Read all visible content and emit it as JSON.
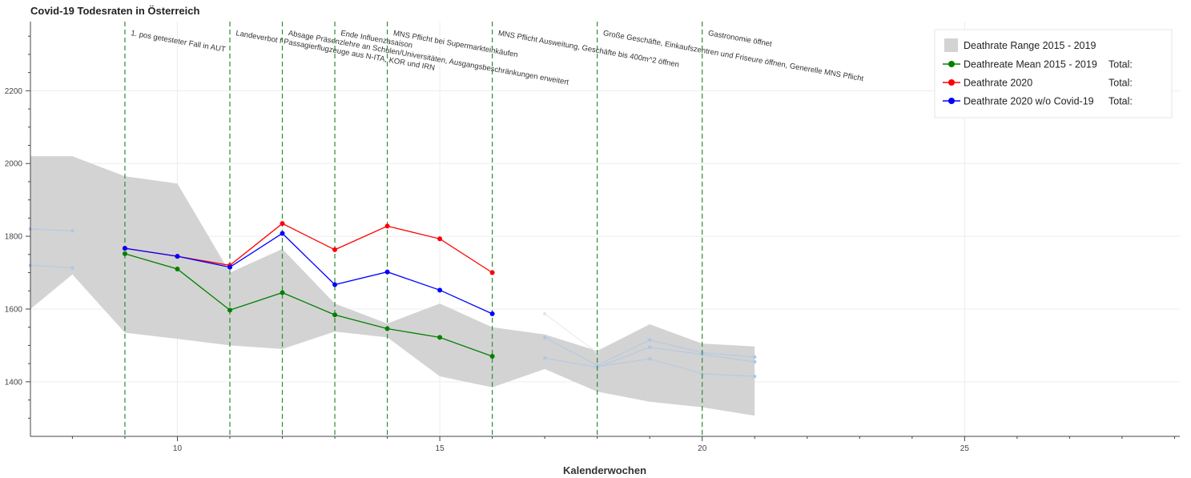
{
  "chart_data": {
    "type": "line",
    "title": "Covid-19 Todesraten in Österreich",
    "xlabel": "Kalenderwochen",
    "ylabel": "",
    "xlim": [
      7.2,
      29.1
    ],
    "ylim": [
      1250,
      2390
    ],
    "grid": true,
    "legend_position": "top-right",
    "x_ticks": [
      10,
      15,
      20,
      25
    ],
    "y_ticks": [
      1400,
      1600,
      1800,
      2000,
      2200
    ],
    "range_band": {
      "name": "Deathrate Range 2015 - 2019",
      "color": "#d3d3d3",
      "x": [
        7.2,
        8,
        9,
        10,
        11,
        12,
        13,
        14,
        15,
        16,
        17,
        18,
        19,
        20,
        21
      ],
      "upper": [
        2020,
        2020,
        1965,
        1945,
        1700,
        1765,
        1615,
        1560,
        1615,
        1550,
        1530,
        1485,
        1558,
        1505,
        1497
      ],
      "lower": [
        1600,
        1695,
        1535,
        1518,
        1500,
        1490,
        1538,
        1522,
        1415,
        1385,
        1435,
        1373,
        1345,
        1330,
        1307
      ]
    },
    "series": [
      {
        "name": "Deathreate Mean 2015 - 2019",
        "total_label": "Total:",
        "color": "#008000",
        "x": [
          9,
          10,
          11,
          12,
          13,
          14,
          15,
          16
        ],
        "y": [
          1752,
          1710,
          1597,
          1645,
          1584,
          1546,
          1522,
          1470
        ]
      },
      {
        "name": "Deathrate 2020",
        "total_label": "Total:",
        "color": "#ff0000",
        "x": [
          9,
          10,
          11,
          12,
          13,
          14,
          15,
          16
        ],
        "y": [
          1767,
          1745,
          1720,
          1835,
          1763,
          1828,
          1793,
          1700
        ]
      },
      {
        "name": "Deathrate 2020 w/o Covid-19",
        "total_label": "Total:",
        "color": "#0000ff",
        "x": [
          9,
          10,
          11,
          12,
          13,
          14,
          15,
          16
        ],
        "y": [
          1767,
          1745,
          1715,
          1808,
          1667,
          1702,
          1652,
          1587
        ]
      }
    ],
    "faded_series": [
      {
        "color": "#aec7e8",
        "x": [
          7.2,
          8
        ],
        "y": [
          1820,
          1815
        ]
      },
      {
        "color": "#aec7e8",
        "x": [
          7.2,
          8
        ],
        "y": [
          1720,
          1713
        ]
      },
      {
        "color": "#aec7e8",
        "x": [
          17,
          18,
          19,
          20,
          21
        ],
        "y": [
          1522,
          1445,
          1515,
          1480,
          1468
        ]
      },
      {
        "color": "#aec7e8",
        "x": [
          17,
          18,
          19,
          20,
          21
        ],
        "y": [
          1465,
          1440,
          1495,
          1475,
          1455
        ]
      },
      {
        "color": "#aec7e8",
        "x": [
          18,
          19,
          20,
          21
        ],
        "y": [
          1442,
          1463,
          1422,
          1415
        ]
      },
      {
        "color": "#e6e6e6",
        "x": [
          17,
          18
        ],
        "y": [
          1587,
          1480
        ]
      }
    ],
    "events": [
      {
        "week": 9,
        "label": "1. pos getesteter Fall in AUT",
        "line": 0
      },
      {
        "week": 11,
        "label": "Landeverbot f Passagierflugzeuge aus N-ITA, KOR und IRN",
        "line": 0
      },
      {
        "week": 12,
        "label": "Absage Präsenzlehre an Schulen/Universitäten, Ausgangsbeschränkungen erweitert",
        "line": 0
      },
      {
        "week": 13,
        "label": "Ende Influenzasaison",
        "line": 0
      },
      {
        "week": 14,
        "label": "MNS Pflicht bei Supermarkteinkäufen",
        "line": 0
      },
      {
        "week": 16,
        "label": "MNS Pflicht Ausweitung, Geschäfte bis 400m^2 öffnen",
        "line": 0
      },
      {
        "week": 18,
        "label": "Große Geschäfte, Einkaufszentren und Friseure öffnen, Generelle MNS Pflicht",
        "line": 0
      },
      {
        "week": 20,
        "label": "Gastronomie öffnet",
        "line": 0
      }
    ]
  }
}
